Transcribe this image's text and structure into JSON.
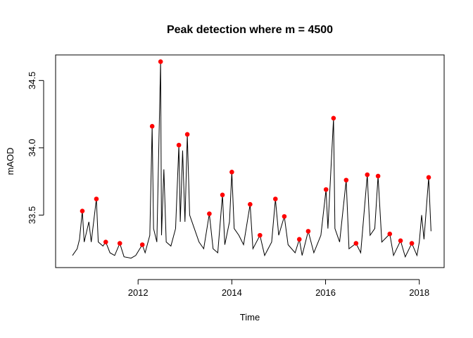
{
  "chart_data": {
    "type": "line",
    "title": "Peak detection where m = 4500",
    "xlabel": "Time",
    "ylabel": "mAOD",
    "xlim": [
      2010.24,
      2018.53
    ],
    "ylim": [
      33.11,
      34.69
    ],
    "xticks": [
      2012,
      2014,
      2016,
      2018
    ],
    "yticks": [
      33.5,
      {
        "value": 34,
        "label": "34.0"
      },
      34.5
    ],
    "series": [
      {
        "style": "line",
        "color": "#000000",
        "x": [
          2010.6,
          2010.7,
          2010.75,
          2010.81,
          2010.85,
          2010.95,
          2011.0,
          2011.11,
          2011.15,
          2011.25,
          2011.31,
          2011.4,
          2011.5,
          2011.61,
          2011.7,
          2011.85,
          2011.95,
          2012.09,
          2012.15,
          2012.25,
          2012.3,
          2012.33,
          2012.4,
          2012.48,
          2012.5,
          2012.55,
          2012.6,
          2012.7,
          2012.8,
          2012.87,
          2012.9,
          2012.95,
          2013.0,
          2013.05,
          2013.1,
          2013.2,
          2013.3,
          2013.4,
          2013.52,
          2013.6,
          2013.7,
          2013.8,
          2013.85,
          2013.95,
          2014.0,
          2014.05,
          2014.15,
          2014.25,
          2014.39,
          2014.45,
          2014.6,
          2014.7,
          2014.85,
          2014.93,
          2015.0,
          2015.12,
          2015.2,
          2015.35,
          2015.44,
          2015.5,
          2015.63,
          2015.75,
          2015.9,
          2016.01,
          2016.05,
          2016.17,
          2016.2,
          2016.3,
          2016.44,
          2016.5,
          2016.65,
          2016.75,
          2016.89,
          2016.95,
          2017.05,
          2017.12,
          2017.2,
          2017.37,
          2017.45,
          2017.6,
          2017.7,
          2017.84,
          2017.95,
          2018.0,
          2018.05,
          2018.1,
          2018.2,
          2018.25
        ],
        "values": [
          33.2,
          33.25,
          33.32,
          33.53,
          33.3,
          33.45,
          33.3,
          33.62,
          33.3,
          33.27,
          33.3,
          33.22,
          33.2,
          33.29,
          33.19,
          33.18,
          33.2,
          33.28,
          33.22,
          33.35,
          34.16,
          33.4,
          33.3,
          34.64,
          33.35,
          33.84,
          33.3,
          33.27,
          33.4,
          34.02,
          33.45,
          33.98,
          33.45,
          34.1,
          33.5,
          33.4,
          33.3,
          33.25,
          33.51,
          33.25,
          33.22,
          33.65,
          33.28,
          33.45,
          33.82,
          33.4,
          33.35,
          33.28,
          33.58,
          33.25,
          33.35,
          33.2,
          33.3,
          33.62,
          33.35,
          33.49,
          33.28,
          33.22,
          33.32,
          33.2,
          33.38,
          33.22,
          33.35,
          33.69,
          33.4,
          34.22,
          33.4,
          33.3,
          33.76,
          33.25,
          33.29,
          33.22,
          33.8,
          33.35,
          33.4,
          33.79,
          33.3,
          33.36,
          33.2,
          33.31,
          33.19,
          33.29,
          33.2,
          33.3,
          33.5,
          33.32,
          33.78,
          33.38
        ]
      },
      {
        "style": "points",
        "color": "#ff0000",
        "x": [
          2010.81,
          2011.11,
          2011.31,
          2011.61,
          2012.09,
          2012.3,
          2012.48,
          2012.87,
          2013.05,
          2013.52,
          2013.8,
          2014.0,
          2014.39,
          2014.6,
          2014.93,
          2015.12,
          2015.44,
          2015.63,
          2016.01,
          2016.17,
          2016.44,
          2016.65,
          2016.89,
          2017.12,
          2017.37,
          2017.6,
          2017.84,
          2018.2
        ],
        "values": [
          33.53,
          33.62,
          33.3,
          33.29,
          33.28,
          34.16,
          34.64,
          34.02,
          34.1,
          33.51,
          33.65,
          33.82,
          33.58,
          33.35,
          33.62,
          33.49,
          33.32,
          33.38,
          33.69,
          34.22,
          33.76,
          33.29,
          33.8,
          33.79,
          33.36,
          33.31,
          33.29,
          33.78
        ]
      }
    ]
  }
}
